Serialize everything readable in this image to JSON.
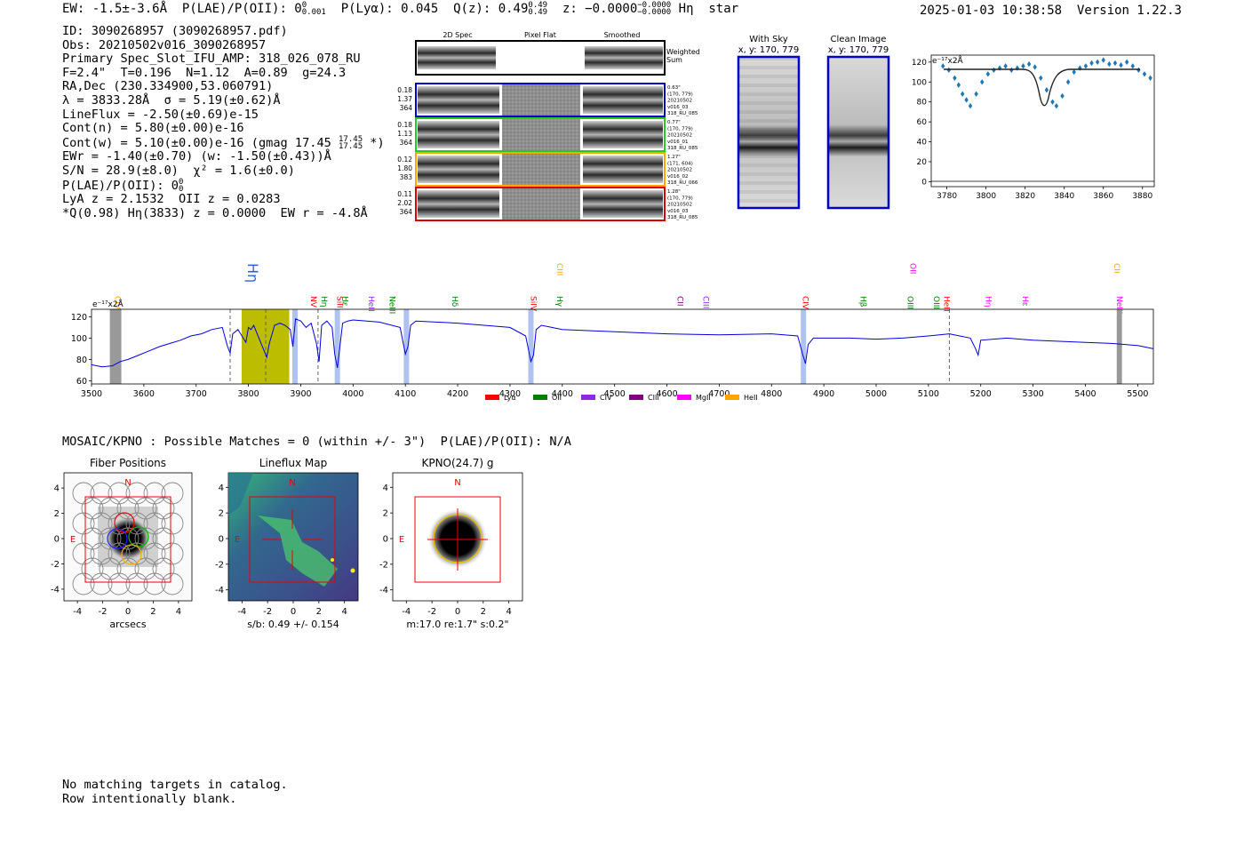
{
  "header": {
    "ew": "EW: -1.5±-3.6Å",
    "plae_label": "P(LAE)/P(OII): 0",
    "plae_sup": "0",
    "plae_sub": "0.001",
    "plya": "P(Lyα): 0.045",
    "qz_label": "Q(z): 0.49",
    "qz_sup": "0.49",
    "qz_sub": "0.49",
    "z_label": "z: −0.0000",
    "z_sup": "−0.0000",
    "z_sub": "−0.0000",
    "line_name": "Hη",
    "classification": "star",
    "timestamp": "2025-01-03 10:38:58",
    "version": "Version 1.22.3"
  },
  "info": {
    "id": "ID: 3090268957 (3090268957.pdf)",
    "obs": "Obs: 20210502v016_3090268957",
    "primary": "Primary Spec_Slot_IFU_AMP: 318_026_078_RU",
    "fit": "F=2.4\"  T=0.196  N=1.12  A=0.89  g=24.3",
    "radec": "RA,Dec (230.334900,53.060791)",
    "lambda": "λ = 3833.28Å  σ = 5.19(±0.62)Å",
    "lineflux": "LineFlux = -2.50(±0.69)e-15",
    "contn": "Cont(n) = 5.80(±0.00)e-16",
    "contw": "Cont(w) = 5.10(±0.00)e-16 (gmag 17.45",
    "gmag_sup": "17.45",
    "gmag_sub": "17.45",
    "contw_end": " *)",
    "ewr": "EWr = -1.40(±0.70) (w: -1.50(±0.43))Å",
    "sn": "S/N = 28.9(±8.0)  χ² = 1.6(±0.0)",
    "plae2": "P(LAE)/P(OII): 0",
    "plae2_sup": "0",
    "plae2_sub": "0",
    "lya_z": "LyA z = 2.1532  OII z = 0.0283",
    "q_line": "*Q(0.98) Hη(3833) z = 0.0000  EW r = -4.8Å"
  },
  "cutouts": {
    "col_headers": [
      "2D Spec",
      "Pixel Flat",
      "Smoothed"
    ],
    "weighted_label": "Weighted\nSum",
    "rows": [
      {
        "left": [
          "0.18",
          "1.37",
          "364"
        ],
        "right": [
          "0.63\"",
          "(170, 779)",
          "20210502",
          "v016_03",
          "318_RU_085"
        ],
        "color": "#0000cc"
      },
      {
        "left": [
          "0.18",
          "1.13",
          "364"
        ],
        "right": [
          "0.77\"",
          "(170, 779)",
          "20210502",
          "v016_01",
          "318_RU_085"
        ],
        "color": "#22cc22"
      },
      {
        "left": [
          "0.12",
          "1.80",
          "383"
        ],
        "right": [
          "1.27\"",
          "(171, 604)",
          "20210502",
          "v016_02",
          "318_RU_066"
        ],
        "color": "#ffa500"
      },
      {
        "left": [
          "0.11",
          "2.02",
          "364"
        ],
        "right": [
          "1.28\"",
          "(170, 779)",
          "20210502",
          "v016_03",
          "318_RU_085"
        ],
        "color": "#dd0000"
      }
    ]
  },
  "sky_panels": {
    "with_sky": "With Sky",
    "with_sky_xy": "x, y: 170, 779",
    "clean": "Clean Image",
    "clean_xy": "x, y: 170, 779"
  },
  "zoom_plot": {
    "unit_label": "e⁻¹⁷x2Å",
    "x_ticks": [
      "3780",
      "3800",
      "3820",
      "3840",
      "3860",
      "3880"
    ],
    "y_ticks": [
      "0",
      "20",
      "40",
      "60",
      "80",
      "100",
      "120"
    ]
  },
  "chart_data": {
    "type": "line",
    "title": "",
    "unit_label": "e⁻¹⁷x2Å",
    "xlim": [
      3500,
      5530
    ],
    "ylim": [
      57,
      127
    ],
    "x_ticks": [
      3500,
      3600,
      3700,
      3800,
      3900,
      4000,
      4100,
      4200,
      4300,
      4400,
      4500,
      4600,
      4700,
      4800,
      4900,
      5000,
      5100,
      5200,
      5300,
      5400,
      5500
    ],
    "y_ticks": [
      60,
      80,
      100,
      120
    ],
    "series": [
      {
        "name": "spectrum",
        "x": [
          3500,
          3520,
          3540,
          3555,
          3570,
          3590,
          3610,
          3630,
          3650,
          3670,
          3690,
          3710,
          3730,
          3750,
          3760,
          3765,
          3770,
          3780,
          3790,
          3795,
          3800,
          3805,
          3810,
          3820,
          3830,
          3835,
          3840,
          3850,
          3860,
          3870,
          3880,
          3885,
          3890,
          3900,
          3910,
          3920,
          3930,
          3935,
          3940,
          3950,
          3960,
          3965,
          3970,
          3980,
          3990,
          4000,
          4050,
          4090,
          4100,
          4105,
          4110,
          4120,
          4200,
          4300,
          4330,
          4340,
          4345,
          4350,
          4360,
          4400,
          4500,
          4600,
          4700,
          4800,
          4850,
          4860,
          4865,
          4870,
          4880,
          4950,
          5000,
          5050,
          5100,
          5140,
          5180,
          5190,
          5195,
          5200,
          5250,
          5300,
          5400,
          5450,
          5500,
          5530
        ],
        "y": [
          75,
          73,
          74,
          78,
          80,
          84,
          88,
          92,
          95,
          98,
          102,
          104,
          108,
          110,
          92,
          86,
          104,
          108,
          100,
          96,
          110,
          108,
          112,
          100,
          88,
          82,
          95,
          112,
          114,
          112,
          108,
          92,
          118,
          116,
          110,
          114,
          95,
          78,
          112,
          116,
          110,
          85,
          72,
          114,
          116,
          117,
          115,
          110,
          85,
          92,
          112,
          116,
          114,
          110,
          102,
          78,
          84,
          108,
          112,
          108,
          106,
          104,
          103,
          104,
          102,
          84,
          76,
          94,
          100,
          100,
          99,
          100,
          102,
          104,
          100,
          90,
          84,
          98,
          100,
          98,
          96,
          95,
          93,
          90
        ]
      }
    ],
    "shaded_regions": [
      {
        "x0": 3787,
        "x1": 3878,
        "color": "#bdbd00"
      }
    ],
    "line_markers": [
      {
        "x": 3545,
        "label": "CIV",
        "color": "#ffa500"
      },
      {
        "x": 3833,
        "label": "Hη",
        "color": "#3060e0"
      },
      {
        "x": 3920,
        "label": "NV",
        "color": "#ff0000"
      },
      {
        "x": 3940,
        "label": "Hη",
        "color": "#008000"
      },
      {
        "x": 3970,
        "label": "SiII",
        "color": "#ff0000"
      },
      {
        "x": 3980,
        "label": "Hε",
        "color": "#008000"
      },
      {
        "x": 4030,
        "label": "HeII",
        "color": "#8a2be2"
      },
      {
        "x": 4070,
        "label": "NeIII",
        "color": "#008000"
      },
      {
        "x": 4190,
        "label": "Hδ",
        "color": "#008000"
      },
      {
        "x": 4340,
        "label": "SiIV",
        "color": "#ff0000"
      },
      {
        "x": 4390,
        "label": "Hγ",
        "color": "#008000"
      },
      {
        "x": 4390,
        "label": "CIII",
        "color": "#ffa500"
      },
      {
        "x": 4620,
        "label": "CII",
        "color": "#800080"
      },
      {
        "x": 4670,
        "label": "CIII",
        "color": "#8a2be2"
      },
      {
        "x": 4860,
        "label": "CIV",
        "color": "#ff0000"
      },
      {
        "x": 4970,
        "label": "Hβ",
        "color": "#008000"
      },
      {
        "x": 5060,
        "label": "OIII",
        "color": "#008000"
      },
      {
        "x": 5065,
        "label": "OII",
        "color": "#ff00ff"
      },
      {
        "x": 5110,
        "label": "OIII",
        "color": "#008000"
      },
      {
        "x": 5130,
        "label": "HeII",
        "color": "#ff0000"
      },
      {
        "x": 5210,
        "label": "Hη",
        "color": "#ff00ff"
      },
      {
        "x": 5280,
        "label": "Hε",
        "color": "#ff00ff"
      },
      {
        "x": 5460,
        "label": "NeIII",
        "color": "#ff00ff"
      },
      {
        "x": 5455,
        "label": "CII",
        "color": "#ffa500"
      }
    ],
    "legend": [
      {
        "label": "Lyα",
        "color": "#ff0000"
      },
      {
        "label": "OII",
        "color": "#008000"
      },
      {
        "label": "CIV",
        "color": "#8a2be2"
      },
      {
        "label": "CIII",
        "color": "#800080"
      },
      {
        "label": "MgII",
        "color": "#ff00ff"
      },
      {
        "label": "HeII",
        "color": "#ffa500"
      }
    ]
  },
  "mosaic": {
    "line": "MOSAIC/KPNO : Possible Matches = 0 (within +/- 3\")  P(LAE)/P(OII): N/A",
    "panels": [
      {
        "title": "Fiber Positions",
        "xlabel": "arcsecs"
      },
      {
        "title": "Lineflux Map",
        "xlabel": "s/b: 0.49 +/- 0.154"
      },
      {
        "title": "KPNO(24.7) g",
        "xlabel": "m:17.0  re:1.7\"  s:0.2\""
      }
    ],
    "axis_ticks": [
      "-4",
      "-2",
      "0",
      "2",
      "4"
    ],
    "north": "N",
    "east": "E"
  },
  "footer": {
    "line1": "No matching targets in catalog.",
    "line2": "Row intentionally blank."
  }
}
